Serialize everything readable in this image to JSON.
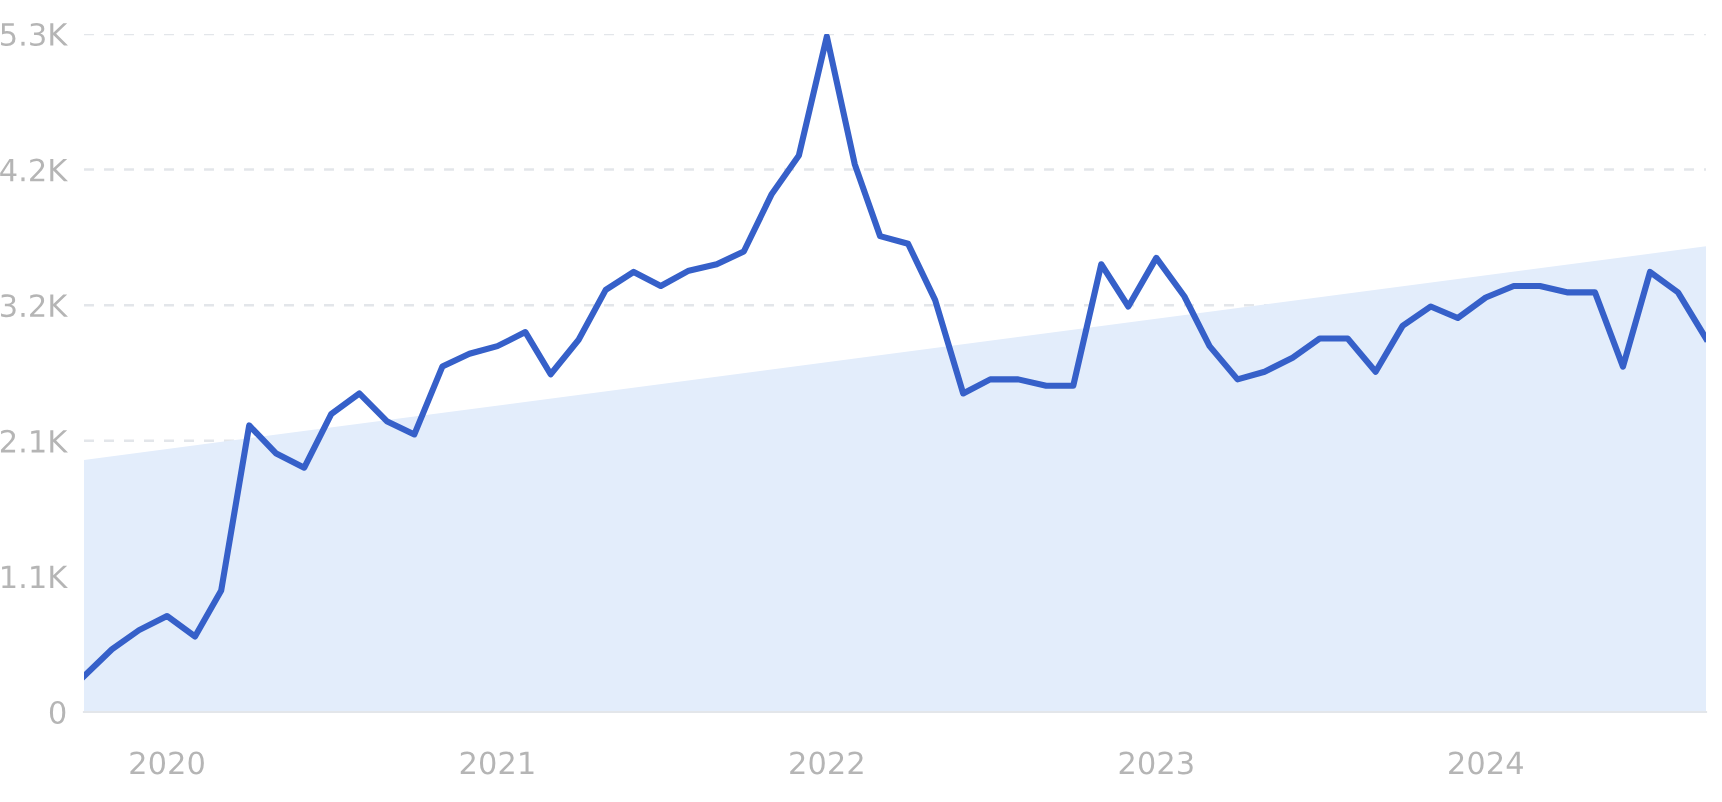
{
  "chart_data": {
    "type": "line",
    "xlim": [
      "2019-10",
      "2024-09"
    ],
    "ylim": [
      0,
      5300
    ],
    "yticks": [
      0,
      {
        "value": 1060,
        "label": "1.1K"
      },
      {
        "value": 2120,
        "label": "2.1K"
      },
      {
        "value": 3180,
        "label": "3.2K"
      },
      {
        "value": 4240,
        "label": "4.2K"
      },
      {
        "value": 5300,
        "label": "5.3K"
      }
    ],
    "xticks": [
      {
        "value": "2020-01",
        "label": "2020"
      },
      {
        "value": "2021-01",
        "label": "2021"
      },
      {
        "value": "2022-01",
        "label": "2022"
      },
      {
        "value": "2023-01",
        "label": "2023"
      },
      {
        "value": "2024-01",
        "label": "2024"
      }
    ],
    "grid": "y",
    "marker": "none",
    "line_style": "solid",
    "series": [
      {
        "type": "area",
        "color": "#e3edfb",
        "x": [
          "2019-10",
          "2024-09"
        ],
        "values": [
          1970,
          3640
        ]
      },
      {
        "color": "#3660c9",
        "x": [
          "2019-10",
          "2019-11",
          "2019-12",
          "2020-01",
          "2020-02",
          "2020-03",
          "2020-04",
          "2020-05",
          "2020-06",
          "2020-07",
          "2020-08",
          "2020-09",
          "2020-10",
          "2020-11",
          "2020-12",
          "2021-01",
          "2021-02",
          "2021-03",
          "2021-04",
          "2021-05",
          "2021-06",
          "2021-07",
          "2021-08",
          "2021-09",
          "2021-10",
          "2021-11",
          "2021-12",
          "2022-01",
          "2022-02",
          "2022-03",
          "2022-04",
          "2022-05",
          "2022-06",
          "2022-07",
          "2022-08",
          "2022-09",
          "2022-10",
          "2022-11",
          "2022-12",
          "2023-01",
          "2023-02",
          "2023-03",
          "2023-04",
          "2023-05",
          "2023-06",
          "2023-07",
          "2023-08",
          "2023-09",
          "2023-10",
          "2023-11",
          "2023-12",
          "2024-01",
          "2024-02",
          "2024-03",
          "2024-04",
          "2024-05",
          "2024-06",
          "2024-07",
          "2024-08",
          "2024-09"
        ],
        "values": [
          280,
          490,
          640,
          750,
          590,
          950,
          2240,
          2020,
          1910,
          2330,
          2490,
          2270,
          2170,
          2700,
          2800,
          2860,
          2970,
          2640,
          2910,
          3300,
          3440,
          3330,
          3450,
          3500,
          3600,
          4050,
          4350,
          5280,
          4280,
          3720,
          3660,
          3220,
          2490,
          2600,
          2600,
          2550,
          2550,
          3500,
          3170,
          3550,
          3250,
          2860,
          2600,
          2660,
          2770,
          2920,
          2920,
          2660,
          3020,
          3170,
          3080,
          3240,
          3330,
          3330,
          3280,
          3280,
          2700,
          3440,
          3280,
          2920
        ]
      }
    ]
  }
}
